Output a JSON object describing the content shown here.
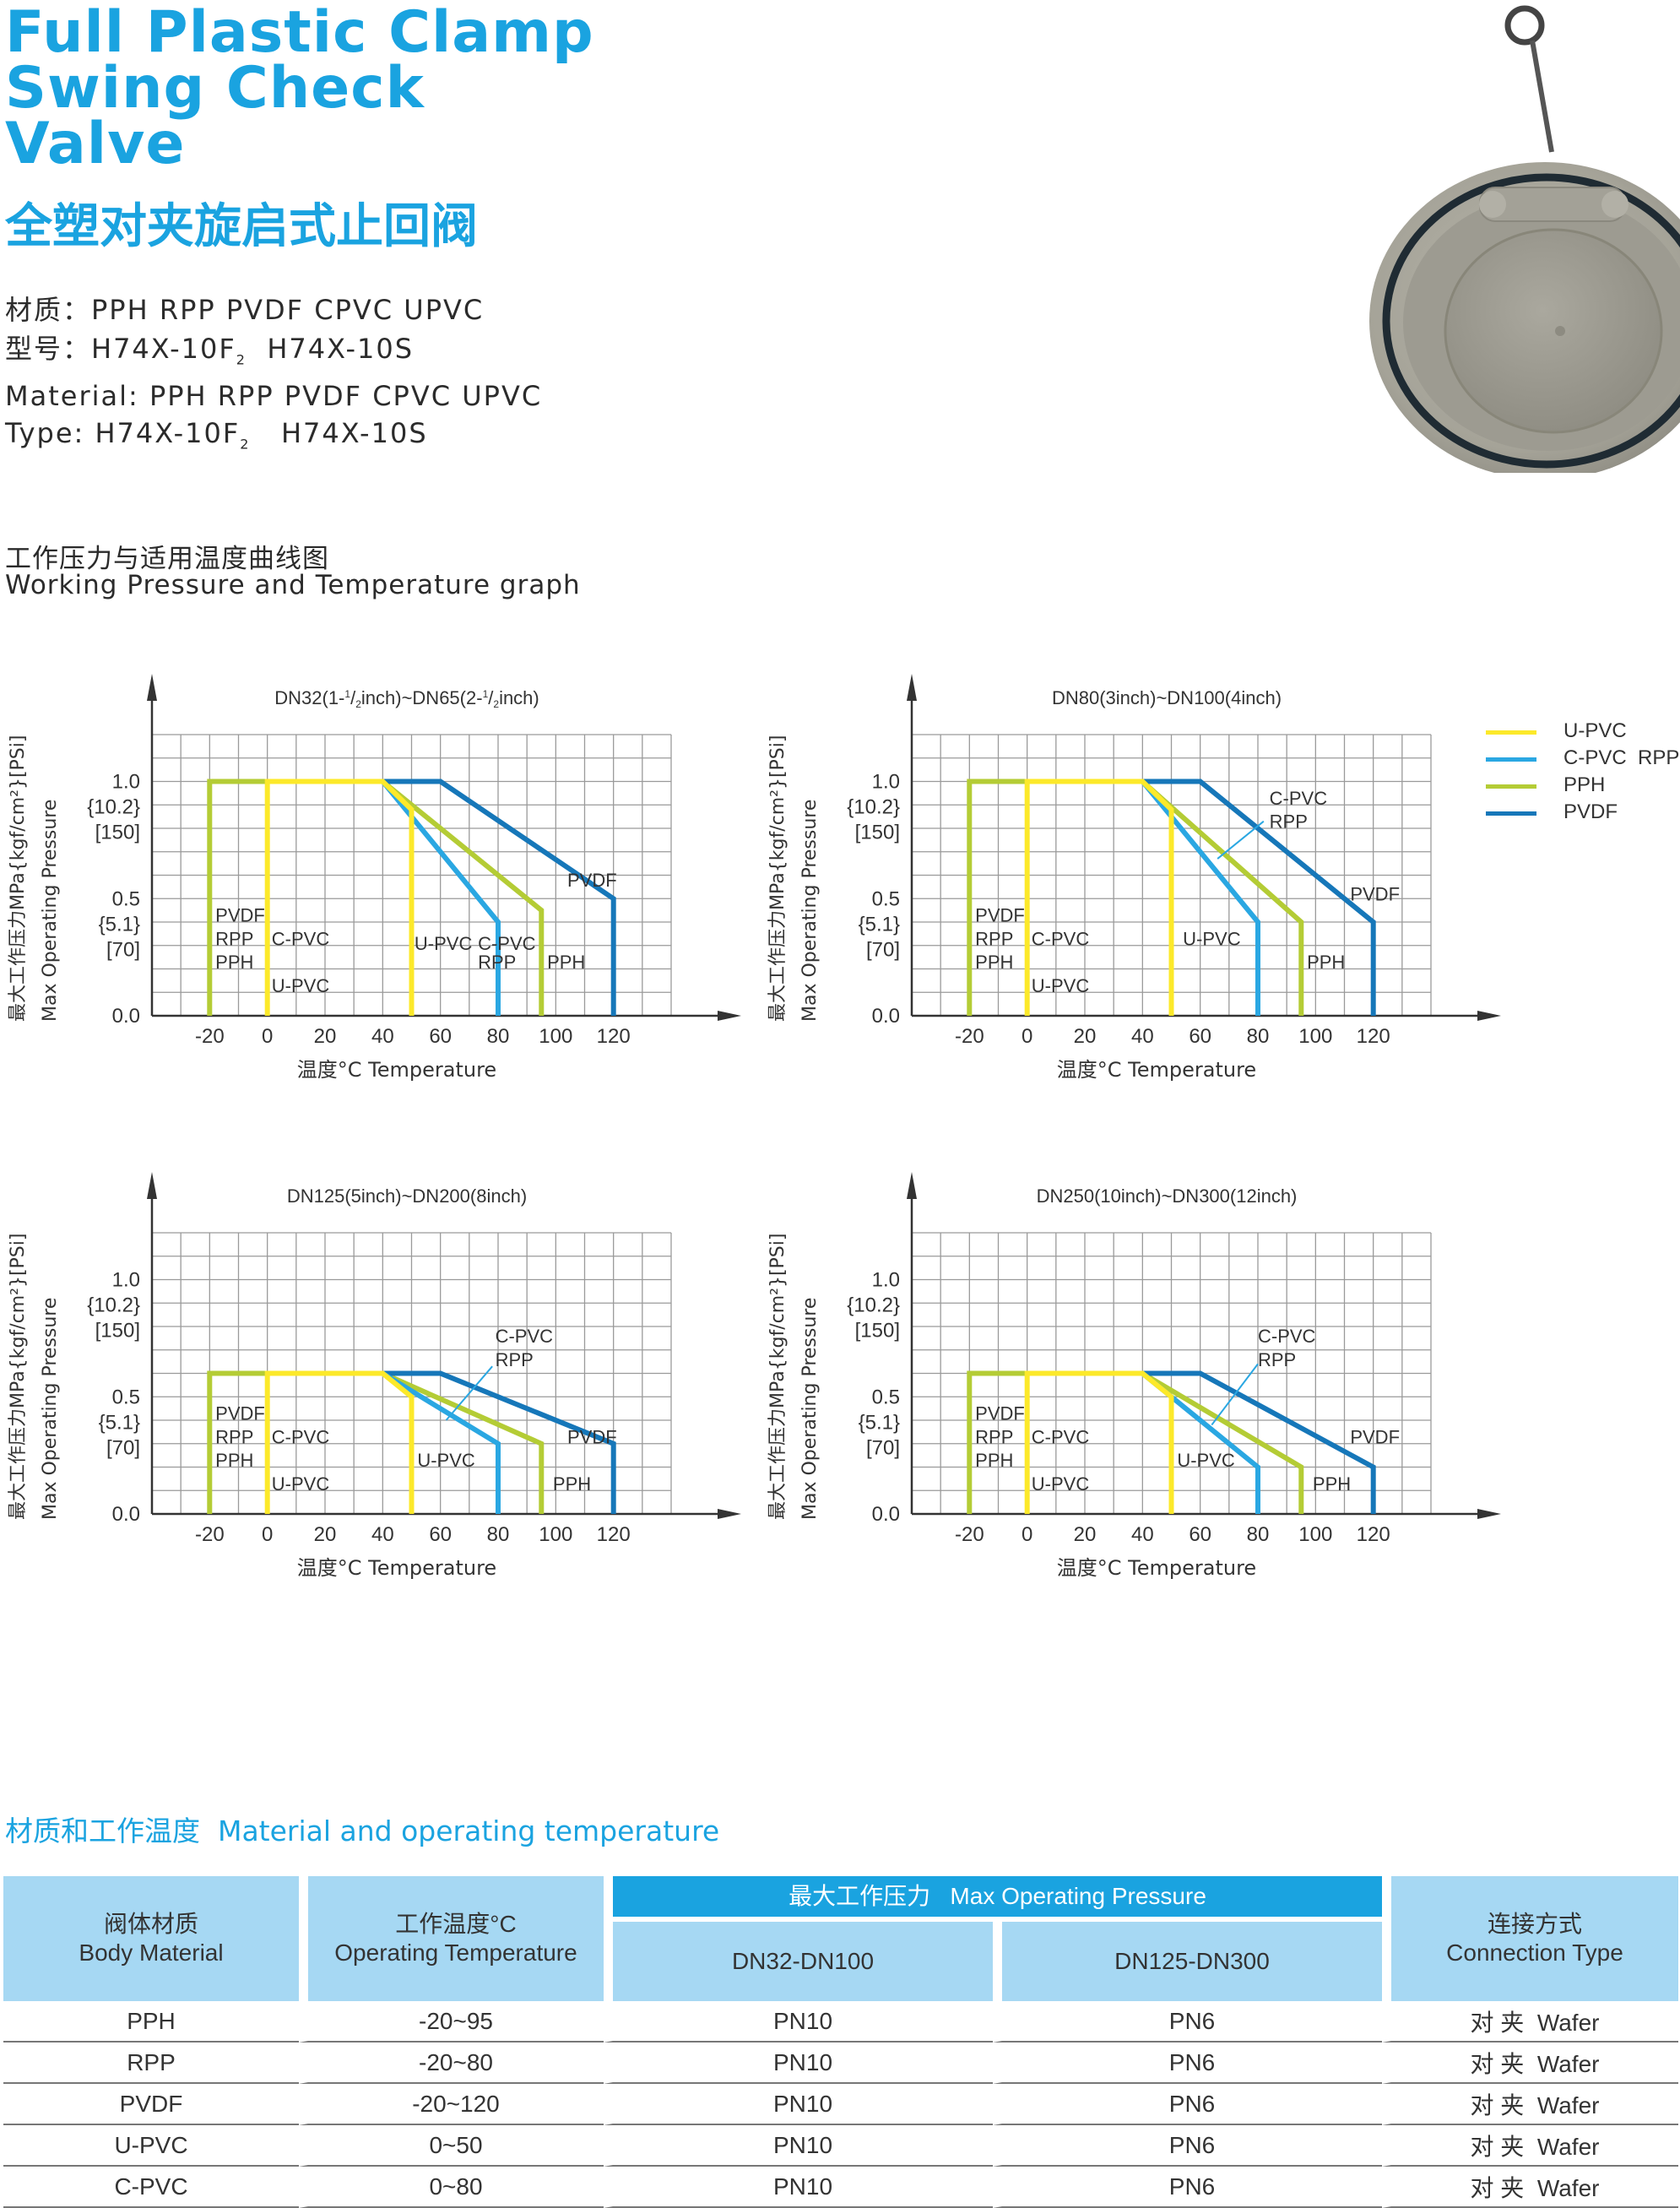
{
  "title": {
    "en_lines": [
      "Full Plastic Clamp",
      "Swing Check",
      "Valve"
    ],
    "cn": "全塑对夹旋启式止回阀"
  },
  "specs": {
    "cn_material": "材质：PPH RPP PVDF CPVC UPVC",
    "cn_type_pre": "型号：H74X-10F",
    "cn_type_sub": "2",
    "cn_type_post": "  H74X-10S",
    "en_material": "Material: PPH  RPP  PVDF  CPVC  UPVC",
    "en_type_pre": "Type: H74X-10F",
    "en_type_sub": "2",
    "en_type_post": "   H74X-10S"
  },
  "graph_heading": {
    "cn": "工作压力与适用温度曲线图",
    "en": "Working Pressure and Temperature graph"
  },
  "colors": {
    "UPVC": "#fce92a",
    "CPVC_RPP": "#2aa7e2",
    "PPH": "#b4cc35",
    "PVDF": "#1677b9"
  },
  "axes": {
    "y_label_cn": "最大工作压力MPa{kgf/cm²}[PSi]",
    "y_label_en": "Max Operating Pressure",
    "x_label": "温度°C  Temperature",
    "x_ticks": [
      "-20",
      "0",
      "20",
      "40",
      "60",
      "80",
      "100",
      "120"
    ],
    "y_ticks": [
      {
        "v": 1.0,
        "lines": [
          "1.0",
          "{10.2}",
          "[150]"
        ]
      },
      {
        "v": 0.5,
        "lines": [
          "0.5",
          "{5.1}",
          "[70]"
        ]
      },
      {
        "v": 0.0,
        "lines": [
          "0.0"
        ]
      }
    ]
  },
  "legend": [
    {
      "label": "U-PVC",
      "color_key": "UPVC"
    },
    {
      "label": "C-PVC  RPP",
      "color_key": "CPVC_RPP"
    },
    {
      "label": "PPH",
      "color_key": "PPH"
    },
    {
      "label": "PVDF",
      "color_key": "PVDF"
    }
  ],
  "chart_data": [
    {
      "type": "line",
      "title_pre": "DN32(1-",
      "title_frac1": "1",
      "title_frac2": "2",
      "title_mid": "inch)~DN65(2-",
      "title_post": "inch)",
      "x_range": [
        -40,
        140
      ],
      "y_range": [
        0,
        1.2
      ],
      "series": [
        {
          "name": "U-PVC",
          "color_key": "UPVC",
          "points": [
            [
              0,
              0
            ],
            [
              0,
              1.0
            ],
            [
              40,
              1.0
            ],
            [
              50,
              0.88
            ],
            [
              50,
              0
            ]
          ]
        },
        {
          "name": "C-PVC RPP",
          "color_key": "CPVC_RPP",
          "points": [
            [
              40,
              1.0
            ],
            [
              80,
              0.4
            ],
            [
              80,
              0
            ]
          ]
        },
        {
          "name": "PPH",
          "color_key": "PPH",
          "points": [
            [
              -20,
              0
            ],
            [
              -20,
              1.0
            ],
            [
              40,
              1.0
            ],
            [
              95,
              0.45
            ],
            [
              95,
              0
            ]
          ]
        },
        {
          "name": "PVDF",
          "color_key": "PVDF",
          "points": [
            [
              40,
              1.0
            ],
            [
              60,
              1.0
            ],
            [
              120,
              0.5
            ],
            [
              120,
              0
            ]
          ]
        }
      ],
      "annotations": [
        {
          "text": "PVDF",
          "x": -18,
          "y": 0.43
        },
        {
          "text": "RPP",
          "x": -18,
          "y": 0.33
        },
        {
          "text": "PPH",
          "x": -18,
          "y": 0.23
        },
        {
          "text": "C-PVC",
          "x": 1.5,
          "y": 0.33
        },
        {
          "text": "U-PVC",
          "x": 1.5,
          "y": 0.13
        },
        {
          "text": "U-PVC",
          "x": 51,
          "y": 0.31
        },
        {
          "text": "C-PVC",
          "x": 73,
          "y": 0.31
        },
        {
          "text": "RPP",
          "x": 73,
          "y": 0.23
        },
        {
          "text": "PPH",
          "x": 97,
          "y": 0.23
        },
        {
          "text": "PVDF",
          "x": 104,
          "y": 0.58
        }
      ]
    },
    {
      "type": "line",
      "title": "DN80(3inch)~DN100(4inch)",
      "x_range": [
        -40,
        140
      ],
      "y_range": [
        0,
        1.2
      ],
      "series": [
        {
          "name": "U-PVC",
          "color_key": "UPVC",
          "points": [
            [
              0,
              0
            ],
            [
              0,
              1.0
            ],
            [
              40,
              1.0
            ],
            [
              50,
              0.88
            ],
            [
              50,
              0
            ]
          ]
        },
        {
          "name": "C-PVC RPP",
          "color_key": "CPVC_RPP",
          "points": [
            [
              40,
              1.0
            ],
            [
              80,
              0.4
            ],
            [
              80,
              0
            ]
          ]
        },
        {
          "name": "PPH",
          "color_key": "PPH",
          "points": [
            [
              -20,
              0
            ],
            [
              -20,
              1.0
            ],
            [
              40,
              1.0
            ],
            [
              95,
              0.4
            ],
            [
              95,
              0
            ]
          ]
        },
        {
          "name": "PVDF",
          "color_key": "PVDF",
          "points": [
            [
              40,
              1.0
            ],
            [
              60,
              1.0
            ],
            [
              120,
              0.4
            ],
            [
              120,
              0
            ]
          ]
        }
      ],
      "annotations": [
        {
          "text": "PVDF",
          "x": -18,
          "y": 0.43
        },
        {
          "text": "RPP",
          "x": -18,
          "y": 0.33
        },
        {
          "text": "PPH",
          "x": -18,
          "y": 0.23
        },
        {
          "text": "C-PVC",
          "x": 1.5,
          "y": 0.33
        },
        {
          "text": "U-PVC",
          "x": 1.5,
          "y": 0.13
        },
        {
          "text": "U-PVC",
          "x": 54,
          "y": 0.33
        },
        {
          "text": "C-PVC",
          "x": 84,
          "y": 0.93
        },
        {
          "text": "RPP",
          "x": 84,
          "y": 0.83
        },
        {
          "text": "PPH",
          "x": 97,
          "y": 0.23
        },
        {
          "text": "PVDF",
          "x": 112,
          "y": 0.52
        }
      ],
      "pointer": [
        [
          82,
          0.83
        ],
        [
          66,
          0.67
        ]
      ]
    },
    {
      "type": "line",
      "title": "DN125(5inch)~DN200(8inch)",
      "x_range": [
        -40,
        140
      ],
      "y_range": [
        0,
        1.2
      ],
      "series": [
        {
          "name": "U-PVC",
          "color_key": "UPVC",
          "points": [
            [
              0,
              0
            ],
            [
              0,
              0.6
            ],
            [
              40,
              0.6
            ],
            [
              50,
              0.5
            ],
            [
              50,
              0
            ]
          ]
        },
        {
          "name": "C-PVC RPP",
          "color_key": "CPVC_RPP",
          "points": [
            [
              40,
              0.6
            ],
            [
              80,
              0.3
            ],
            [
              80,
              0
            ]
          ]
        },
        {
          "name": "PPH",
          "color_key": "PPH",
          "points": [
            [
              -20,
              0
            ],
            [
              -20,
              0.6
            ],
            [
              40,
              0.6
            ],
            [
              95,
              0.3
            ],
            [
              95,
              0
            ]
          ]
        },
        {
          "name": "PVDF",
          "color_key": "PVDF",
          "points": [
            [
              40,
              0.6
            ],
            [
              60,
              0.6
            ],
            [
              120,
              0.3
            ],
            [
              120,
              0
            ]
          ]
        }
      ],
      "annotations": [
        {
          "text": "PVDF",
          "x": -18,
          "y": 0.43
        },
        {
          "text": "RPP",
          "x": -18,
          "y": 0.33
        },
        {
          "text": "PPH",
          "x": -18,
          "y": 0.23
        },
        {
          "text": "C-PVC",
          "x": 1.5,
          "y": 0.33
        },
        {
          "text": "U-PVC",
          "x": 1.5,
          "y": 0.13
        },
        {
          "text": "U-PVC",
          "x": 52,
          "y": 0.23
        },
        {
          "text": "C-PVC",
          "x": 79,
          "y": 0.76
        },
        {
          "text": "RPP",
          "x": 79,
          "y": 0.66
        },
        {
          "text": "PPH",
          "x": 99,
          "y": 0.13
        },
        {
          "text": "PVDF",
          "x": 104,
          "y": 0.33
        }
      ],
      "pointer": [
        [
          78,
          0.63
        ],
        [
          62,
          0.4
        ]
      ]
    },
    {
      "type": "line",
      "title": "DN250(10inch)~DN300(12inch)",
      "x_range": [
        -40,
        140
      ],
      "y_range": [
        0,
        1.2
      ],
      "series": [
        {
          "name": "U-PVC",
          "color_key": "UPVC",
          "points": [
            [
              0,
              0
            ],
            [
              0,
              0.6
            ],
            [
              40,
              0.6
            ],
            [
              50,
              0.5
            ],
            [
              50,
              0
            ]
          ]
        },
        {
          "name": "C-PVC RPP",
          "color_key": "CPVC_RPP",
          "points": [
            [
              40,
              0.6
            ],
            [
              80,
              0.2
            ],
            [
              80,
              0
            ]
          ]
        },
        {
          "name": "PPH",
          "color_key": "PPH",
          "points": [
            [
              -20,
              0
            ],
            [
              -20,
              0.6
            ],
            [
              40,
              0.6
            ],
            [
              95,
              0.2
            ],
            [
              95,
              0
            ]
          ]
        },
        {
          "name": "PVDF",
          "color_key": "PVDF",
          "points": [
            [
              40,
              0.6
            ],
            [
              60,
              0.6
            ],
            [
              120,
              0.2
            ],
            [
              120,
              0
            ]
          ]
        }
      ],
      "annotations": [
        {
          "text": "PVDF",
          "x": -18,
          "y": 0.43
        },
        {
          "text": "RPP",
          "x": -18,
          "y": 0.33
        },
        {
          "text": "PPH",
          "x": -18,
          "y": 0.23
        },
        {
          "text": "C-PVC",
          "x": 1.5,
          "y": 0.33
        },
        {
          "text": "U-PVC",
          "x": 1.5,
          "y": 0.13
        },
        {
          "text": "U-PVC",
          "x": 52,
          "y": 0.23
        },
        {
          "text": "C-PVC",
          "x": 80,
          "y": 0.76
        },
        {
          "text": "RPP",
          "x": 80,
          "y": 0.66
        },
        {
          "text": "PPH",
          "x": 99,
          "y": 0.13
        },
        {
          "text": "PVDF",
          "x": 112,
          "y": 0.33
        }
      ],
      "pointer": [
        [
          80,
          0.64
        ],
        [
          64,
          0.38
        ]
      ]
    }
  ],
  "table_section": {
    "title": "材质和工作温度  Material and operating temperature",
    "headers": {
      "body_material_cn": "阀体材质",
      "body_material_en": "Body Material",
      "temp_cn": "工作温度°C",
      "temp_en": "Operating Temperature",
      "pressure": "最大工作压力   Max Operating Pressure",
      "dn_small": "DN32-DN100",
      "dn_large": "DN125-DN300",
      "conn_cn": "连接方式",
      "conn_en": "Connection Type"
    },
    "rows": [
      {
        "material": "PPH",
        "temp": "-20~95",
        "p1": "PN10",
        "p2": "PN6",
        "conn": "对 夹  Wafer"
      },
      {
        "material": "RPP",
        "temp": "-20~80",
        "p1": "PN10",
        "p2": "PN6",
        "conn": "对 夹  Wafer"
      },
      {
        "material": "PVDF",
        "temp": "-20~120",
        "p1": "PN10",
        "p2": "PN6",
        "conn": "对 夹  Wafer"
      },
      {
        "material": "U-PVC",
        "temp": "0~50",
        "p1": "PN10",
        "p2": "PN6",
        "conn": "对 夹  Wafer"
      },
      {
        "material": "C-PVC",
        "temp": "0~80",
        "p1": "PN10",
        "p2": "PN6",
        "conn": "对 夹  Wafer"
      }
    ]
  }
}
